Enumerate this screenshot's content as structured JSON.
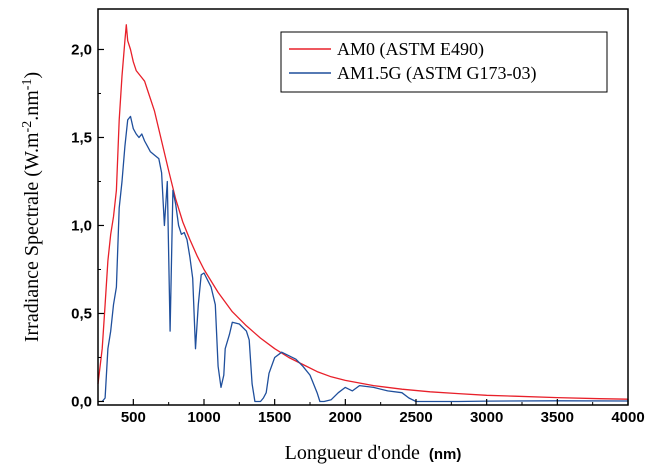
{
  "chart_data": {
    "type": "line",
    "xlabel": "Longueur d'onde",
    "xlabel_unit": "(nm)",
    "ylabel": "Irradiance Spectrale (W.m",
    "ylabel_sup1": "-2",
    "ylabel_mid": ".nm",
    "ylabel_sup2": "-1",
    "ylabel_end": ")",
    "xlim": [
      250,
      4000
    ],
    "ylim": [
      -0.02,
      2.23
    ],
    "x_ticks": [
      500,
      1000,
      1500,
      2000,
      2500,
      3000,
      3500,
      4000
    ],
    "x_tick_labels": [
      "500",
      "1000",
      "1500",
      "2000",
      "2500",
      "3000",
      "3500",
      "4000"
    ],
    "y_ticks": [
      0.0,
      0.5,
      1.0,
      1.5,
      2.0
    ],
    "y_tick_labels": [
      "0,0",
      "0,5",
      "1,0",
      "1,5",
      "2,0"
    ],
    "grid": false,
    "legend_position": "top-right",
    "series": [
      {
        "name": "AM0 (ASTM E490)",
        "color": "#e8202a",
        "x": [
          250,
          280,
          300,
          320,
          340,
          360,
          380,
          400,
          420,
          440,
          450,
          460,
          480,
          500,
          520,
          540,
          560,
          580,
          600,
          650,
          700,
          750,
          800,
          850,
          900,
          950,
          1000,
          1100,
          1200,
          1300,
          1400,
          1500,
          1600,
          1700,
          1800,
          1900,
          2000,
          2200,
          2400,
          2600,
          2800,
          3000,
          3200,
          3500,
          3800,
          4000
        ],
        "y": [
          0.1,
          0.3,
          0.55,
          0.8,
          0.95,
          1.05,
          1.2,
          1.6,
          1.85,
          2.05,
          2.14,
          2.05,
          2.0,
          1.93,
          1.88,
          1.86,
          1.84,
          1.82,
          1.77,
          1.65,
          1.48,
          1.31,
          1.15,
          1.02,
          0.92,
          0.83,
          0.75,
          0.62,
          0.51,
          0.43,
          0.36,
          0.3,
          0.25,
          0.21,
          0.17,
          0.14,
          0.12,
          0.09,
          0.07,
          0.055,
          0.045,
          0.035,
          0.03,
          0.022,
          0.016,
          0.013
        ]
      },
      {
        "name": "AM1.5G (ASTM G173-03)",
        "color": "#1f4f9c",
        "x": [
          280,
          300,
          320,
          340,
          360,
          380,
          400,
          420,
          440,
          460,
          480,
          500,
          520,
          540,
          560,
          580,
          600,
          620,
          650,
          680,
          700,
          720,
          740,
          760,
          780,
          800,
          820,
          840,
          860,
          880,
          900,
          920,
          940,
          960,
          980,
          1000,
          1050,
          1080,
          1100,
          1120,
          1140,
          1150,
          1180,
          1200,
          1250,
          1300,
          1320,
          1340,
          1360,
          1380,
          1400,
          1420,
          1440,
          1460,
          1500,
          1550,
          1600,
          1650,
          1700,
          1750,
          1800,
          1820,
          1850,
          1900,
          1950,
          2000,
          2050,
          2100,
          2200,
          2300,
          2400,
          2450,
          2500,
          2550,
          2600,
          2800,
          3000,
          3500,
          4000
        ],
        "y": [
          0.0,
          0.02,
          0.3,
          0.4,
          0.55,
          0.65,
          1.1,
          1.25,
          1.45,
          1.6,
          1.62,
          1.55,
          1.52,
          1.5,
          1.52,
          1.48,
          1.45,
          1.42,
          1.4,
          1.38,
          1.3,
          1.0,
          1.25,
          0.4,
          1.2,
          1.12,
          1.0,
          0.95,
          0.96,
          0.92,
          0.82,
          0.7,
          0.3,
          0.55,
          0.72,
          0.73,
          0.65,
          0.55,
          0.2,
          0.08,
          0.15,
          0.3,
          0.38,
          0.45,
          0.44,
          0.4,
          0.35,
          0.1,
          0.0,
          0.0,
          0.0,
          0.02,
          0.05,
          0.16,
          0.25,
          0.28,
          0.26,
          0.24,
          0.2,
          0.15,
          0.05,
          0.0,
          0.0,
          0.01,
          0.05,
          0.08,
          0.06,
          0.09,
          0.08,
          0.06,
          0.05,
          0.02,
          0.0,
          0.0,
          0.0,
          0.0,
          0.002,
          0.004,
          0.003
        ]
      }
    ]
  }
}
